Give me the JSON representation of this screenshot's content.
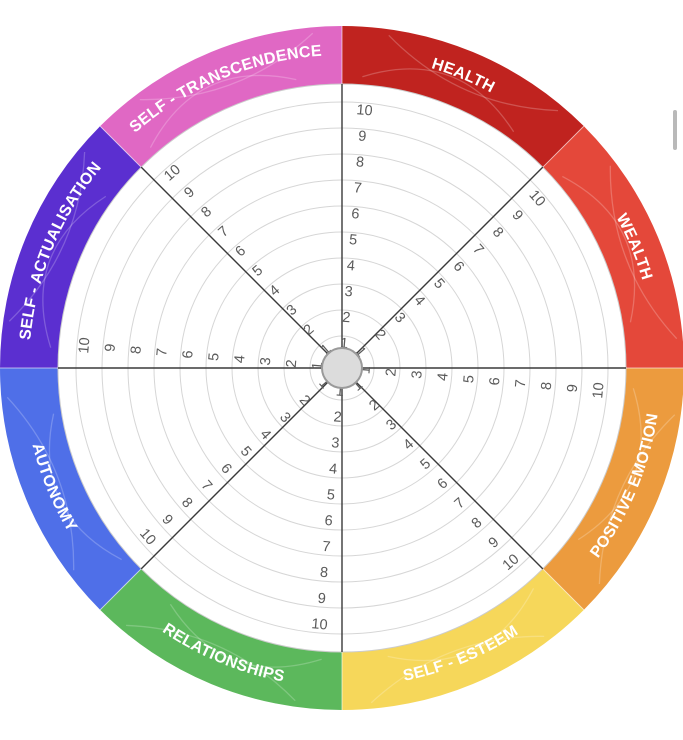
{
  "segments": [
    {
      "label": "HEALTH",
      "color": "#c0231f"
    },
    {
      "label": "WEALTH",
      "color": "#e4483a"
    },
    {
      "label": "POSITIVE EMOTION",
      "color": "#ec9b3e"
    },
    {
      "label": "SELF - ESTEEM",
      "color": "#f6d75a"
    },
    {
      "label": "RELATIONSHIPS",
      "color": "#5cb85c"
    },
    {
      "label": "AUTONOMY",
      "color": "#4f6fe8"
    },
    {
      "label": "SELF - ACTUALISATION",
      "color": "#5b2fd0"
    },
    {
      "label": "SELF - TRANSCENDENCE",
      "color": "#e068c4"
    }
  ],
  "scale": [
    "1",
    "2",
    "3",
    "4",
    "5",
    "6",
    "7",
    "8",
    "9",
    "10"
  ]
}
